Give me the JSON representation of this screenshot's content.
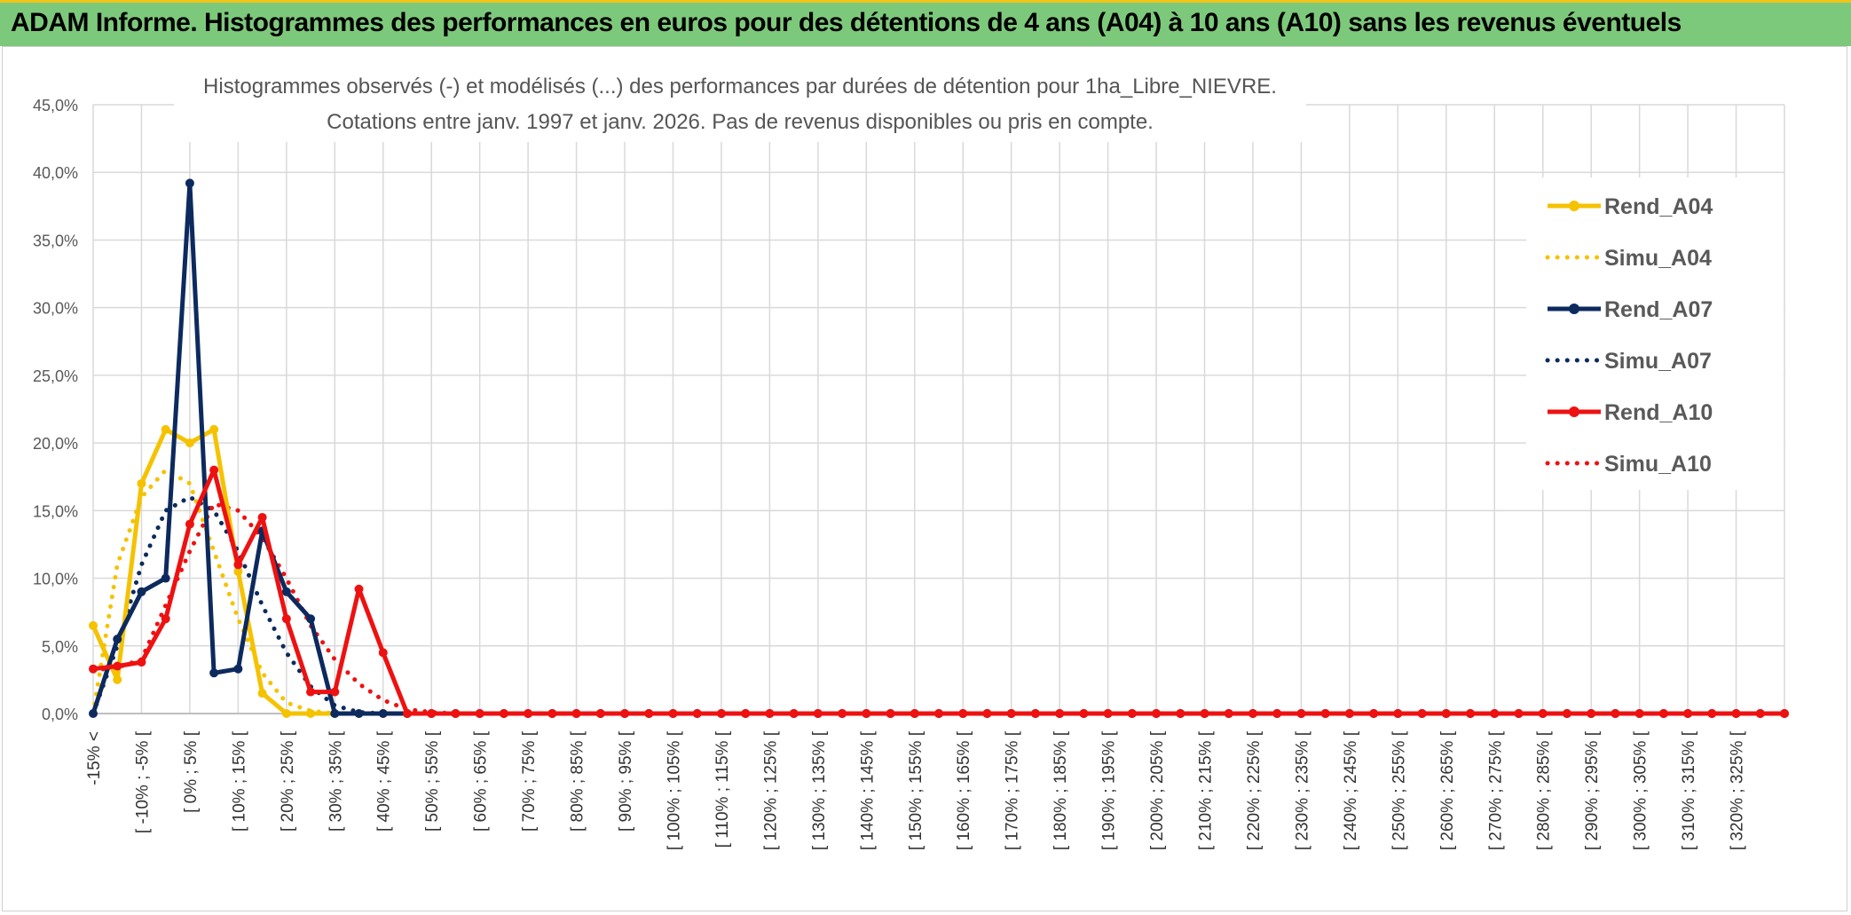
{
  "banner": {
    "title": "ADAM Informe. Histogrammes des performances en euros pour des détentions de 4 ans (A04) à 10 ans (A10) sans les revenus éventuels",
    "background": "#7dc97b"
  },
  "chart_data": {
    "type": "line",
    "title_line1": "Histogrammes observés (-) et modélisés (...) des performances par durées de détention pour 1ha_Libre_NIEVRE.",
    "title_line2": "Cotations entre janv. 1997 et janv. 2026. Pas de revenus disponibles ou pris en compte.",
    "ylim": [
      0,
      45
    ],
    "yticks": [
      "0,0%",
      "5,0%",
      "10,0%",
      "15,0%",
      "20,0%",
      "25,0%",
      "30,0%",
      "35,0%",
      "40,0%",
      "45,0%"
    ],
    "x_major_labels": [
      "-15% <",
      "[ -10% ; -5% [",
      "[ 0% ; 5% [",
      "[ 10% ; 15% [",
      "[ 20% ; 25% [",
      "[ 30% ; 35% [",
      "[ 40% ; 45% [",
      "[ 50% ; 55% [",
      "[ 60% ; 65% [",
      "[ 70% ; 75% [",
      "[ 80% ; 85% [",
      "[ 90% ; 95% [",
      "[ 100% ; 105% [",
      "[ 110% ; 115% [",
      "[ 120% ; 125% [",
      "[ 130% ; 135% [",
      "[ 140% ; 145% [",
      "[ 150% ; 155% [",
      "[ 160% ; 165% [",
      "[ 170% ; 175% [",
      "[ 180% ; 185% [",
      "[ 190% ; 195% [",
      "[ 200% ; 205% [",
      "[ 210% ; 215% [",
      "[ 220% ; 225% [",
      "[ 230% ; 235% [",
      "[ 240% ; 245% [",
      "[ 250% ; 255% [",
      "[ 260% ; 265% [",
      "[ 270% ; 275% [",
      "[ 280% ; 285% [",
      "[ 290% ; 295% [",
      "[ 300% ; 305% [",
      "[ 310% ; 315% [",
      "[ 320% ; 325% ["
    ],
    "grid": true,
    "legend_position": "right",
    "series": [
      {
        "name": "Rend_A04",
        "color": "#f5c200",
        "style": "solid",
        "marker": true,
        "values": [
          6.5,
          2.5,
          17,
          21,
          20,
          21,
          10.5,
          1.5,
          0,
          0,
          0,
          0,
          0,
          0,
          0,
          0,
          0,
          0,
          0,
          0,
          0,
          0,
          0,
          0,
          0,
          0,
          0,
          0,
          0,
          0,
          0,
          0,
          0,
          0,
          0,
          0,
          0,
          0,
          0,
          0,
          0,
          0,
          0,
          0,
          0,
          0,
          0,
          0,
          0,
          0,
          0,
          0,
          0,
          0,
          0,
          0,
          0,
          0,
          0,
          0,
          0,
          0,
          0,
          0,
          0,
          0,
          0,
          0,
          0,
          0,
          0
        ]
      },
      {
        "name": "Simu_A04",
        "color": "#f5c200",
        "style": "dotted",
        "marker": false,
        "values": [
          0,
          11,
          16,
          18,
          17,
          12,
          7,
          3,
          0.8,
          0.2,
          0,
          0,
          0,
          0,
          0,
          0,
          0,
          0,
          0,
          0,
          0,
          0,
          0,
          0,
          0,
          0,
          0,
          0,
          0,
          0,
          0,
          0,
          0,
          0,
          0,
          0,
          0,
          0,
          0,
          0,
          0,
          0,
          0,
          0,
          0,
          0,
          0,
          0,
          0,
          0,
          0,
          0,
          0,
          0,
          0,
          0,
          0,
          0,
          0,
          0,
          0,
          0,
          0,
          0,
          0,
          0,
          0,
          0,
          0,
          0,
          0
        ]
      },
      {
        "name": "Rend_A07",
        "color": "#0d2a5e",
        "style": "solid",
        "marker": true,
        "values": [
          0,
          5.5,
          9,
          10,
          39.2,
          3,
          3.3,
          13.5,
          9,
          7,
          0,
          0,
          0,
          0,
          0,
          0,
          0,
          0,
          0,
          0,
          0,
          0,
          0,
          0,
          0,
          0,
          0,
          0,
          0,
          0,
          0,
          0,
          0,
          0,
          0,
          0,
          0,
          0,
          0,
          0,
          0,
          0,
          0,
          0,
          0,
          0,
          0,
          0,
          0,
          0,
          0,
          0,
          0,
          0,
          0,
          0,
          0,
          0,
          0,
          0,
          0,
          0,
          0,
          0,
          0,
          0,
          0,
          0,
          0,
          0,
          0
        ]
      },
      {
        "name": "Simu_A07",
        "color": "#0d2a5e",
        "style": "dotted",
        "marker": false,
        "values": [
          0,
          5,
          11,
          15,
          16,
          15,
          12,
          8,
          4.5,
          2,
          0.6,
          0.1,
          0,
          0,
          0,
          0,
          0,
          0,
          0,
          0,
          0,
          0,
          0,
          0,
          0,
          0,
          0,
          0,
          0,
          0,
          0,
          0,
          0,
          0,
          0,
          0,
          0,
          0,
          0,
          0,
          0,
          0,
          0,
          0,
          0,
          0,
          0,
          0,
          0,
          0,
          0,
          0,
          0,
          0,
          0,
          0,
          0,
          0,
          0,
          0,
          0,
          0,
          0,
          0,
          0,
          0,
          0,
          0,
          0,
          0,
          0
        ]
      },
      {
        "name": "Rend_A10",
        "color": "#ee1111",
        "style": "solid",
        "marker": true,
        "values": [
          3.3,
          3.5,
          3.8,
          7,
          14,
          18,
          11,
          14.5,
          7,
          1.6,
          1.6,
          9.2,
          4.5,
          0,
          0,
          0,
          0,
          0,
          0,
          0,
          0,
          0,
          0,
          0,
          0,
          0,
          0,
          0,
          0,
          0,
          0,
          0,
          0,
          0,
          0,
          0,
          0,
          0,
          0,
          0,
          0,
          0,
          0,
          0,
          0,
          0,
          0,
          0,
          0,
          0,
          0,
          0,
          0,
          0,
          0,
          0,
          0,
          0,
          0,
          0,
          0,
          0,
          0,
          0,
          0,
          0,
          0,
          0,
          0,
          0,
          0
        ]
      },
      {
        "name": "Simu_A10",
        "color": "#ee1111",
        "style": "dotted",
        "marker": false,
        "values": [
          3.2,
          3.4,
          4,
          8,
          12,
          15.5,
          15,
          13,
          10,
          6.5,
          4,
          2.2,
          1,
          0.3,
          0.1,
          0,
          0,
          0,
          0,
          0,
          0,
          0,
          0,
          0,
          0,
          0,
          0,
          0,
          0,
          0,
          0,
          0,
          0,
          0,
          0,
          0,
          0,
          0,
          0,
          0,
          0,
          0,
          0,
          0,
          0,
          0,
          0,
          0,
          0,
          0,
          0,
          0,
          0,
          0,
          0,
          0,
          0,
          0,
          0,
          0,
          0,
          0,
          0,
          0,
          0,
          0,
          0,
          0,
          0,
          0,
          0
        ]
      }
    ]
  }
}
